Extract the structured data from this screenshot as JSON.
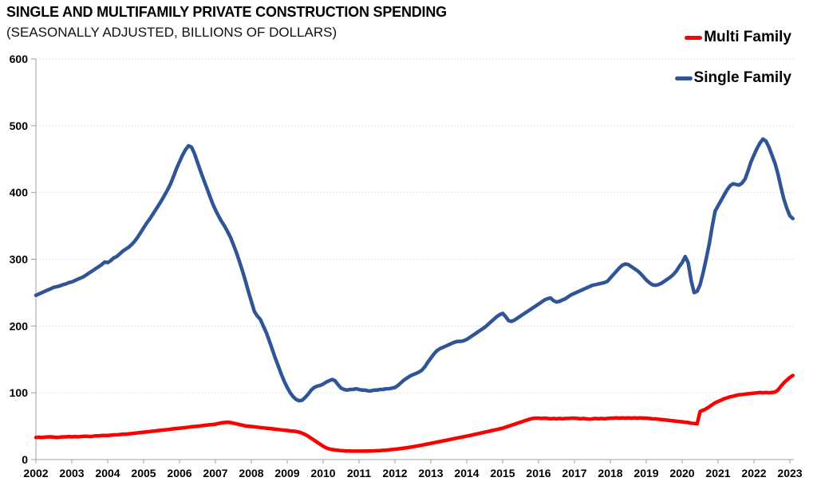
{
  "title": "SINGLE AND MULTIFAMILY PRIVATE CONSTRUCTION SPENDING",
  "subtitle": "(SEASONALLY ADJUSTED, BILLIONS OF DOLLARS)",
  "legend": [
    {
      "label": "Multi Family",
      "color": "#fa0000"
    },
    {
      "label": "Single Family",
      "color": "#2f5597"
    }
  ],
  "colors": {
    "multi_family_line": "#fa0000",
    "single_family_line": "#2f5597",
    "gridline": "#c8c8c8",
    "axis": "#a0a0a0",
    "text": "#000000"
  },
  "chart_data": {
    "type": "line",
    "title": "SINGLE AND MULTIFAMILY PRIVATE CONSTRUCTION SPENDING",
    "subtitle": "(SEASONALLY ADJUSTED, BILLIONS OF DOLLARS)",
    "xlabel": "",
    "ylabel": "",
    "ylim": [
      0,
      600
    ],
    "y_ticks": [
      0,
      100,
      200,
      300,
      400,
      500,
      600
    ],
    "x_tick_labels": [
      "2002",
      "2003",
      "2004",
      "2005",
      "2006",
      "2007",
      "2008",
      "2009",
      "2010",
      "2011",
      "2012",
      "2013",
      "2014",
      "2015",
      "2016",
      "2017",
      "2018",
      "2019",
      "2020",
      "2021",
      "2022",
      "2023"
    ],
    "x_start_year": 2002,
    "points_per_year": 12,
    "grid": "horizontal-dotted",
    "legend_position": "top-right",
    "series": [
      {
        "name": "Multi Family",
        "color": "#fa0000",
        "values": [
          33,
          33.5,
          33,
          33.5,
          34,
          34,
          33.5,
          33,
          33.5,
          34,
          34,
          34.5,
          34,
          34.5,
          34,
          34.5,
          35,
          35,
          34.5,
          35,
          35.5,
          35.5,
          36,
          36,
          36,
          36.5,
          37,
          37,
          37.5,
          38,
          38,
          38.5,
          39,
          39.5,
          40,
          40.5,
          41,
          41.5,
          42,
          42.5,
          43,
          43.5,
          44,
          44.5,
          45,
          45.5,
          46,
          46.5,
          47,
          47.5,
          48,
          48.5,
          49,
          49.5,
          50,
          50.5,
          51,
          51.5,
          52,
          52.5,
          53,
          54,
          55,
          55.5,
          56,
          55.5,
          54.5,
          53.5,
          52.5,
          51.5,
          50.5,
          50,
          49.5,
          49,
          48.5,
          48,
          47.5,
          47,
          46.5,
          46,
          45.5,
          45,
          44.5,
          44,
          43.5,
          43,
          42.5,
          42,
          41,
          39.5,
          37.5,
          35,
          32,
          29,
          26,
          23,
          20,
          17.5,
          16,
          15,
          14.3,
          13.8,
          13.4,
          13.1,
          12.9,
          12.8,
          12.7,
          12.7,
          12.7,
          12.6,
          12.7,
          12.8,
          12.9,
          13,
          13.2,
          13.5,
          13.8,
          14.1,
          14.5,
          15,
          15.5,
          16,
          16.6,
          17.2,
          17.8,
          18.5,
          19.2,
          20,
          20.8,
          21.6,
          22.5,
          23.4,
          24.3,
          25.2,
          26.1,
          27,
          27.9,
          28.8,
          29.7,
          30.6,
          31.5,
          32.4,
          33.3,
          34.2,
          35.1,
          36,
          37,
          38,
          39,
          40,
          41,
          42,
          43,
          44,
          45,
          46,
          47,
          48.5,
          50,
          51.5,
          53,
          54.5,
          56,
          57.5,
          59,
          60.5,
          61.5,
          62,
          62,
          61.5,
          62,
          61.5,
          61,
          61.5,
          61,
          61.5,
          61,
          61.5,
          61.5,
          62,
          62,
          61.5,
          61,
          61.5,
          61,
          60.5,
          61,
          61.5,
          61,
          61.5,
          61,
          61.5,
          62,
          62,
          62.5,
          62,
          62.5,
          62,
          62.5,
          62,
          62.5,
          62,
          62.5,
          62,
          62,
          61.5,
          61,
          61,
          60.5,
          60,
          59.5,
          59,
          58.5,
          58,
          57.5,
          57,
          56.5,
          56,
          55.5,
          54.5,
          54,
          53.5,
          72,
          74,
          76,
          79,
          82,
          85,
          87,
          89,
          91,
          92.5,
          94,
          95,
          96,
          97,
          97.5,
          98,
          98.5,
          99,
          99.5,
          100,
          100.5,
          100,
          100.5,
          100,
          100.5,
          101,
          104,
          110,
          115,
          119,
          123,
          126
        ]
      },
      {
        "name": "Single Family",
        "color": "#2f5597",
        "values": [
          246,
          248,
          250,
          252,
          254,
          256,
          258,
          259,
          260,
          262,
          263,
          265,
          266,
          268,
          270,
          272,
          274,
          277,
          280,
          283,
          286,
          289,
          292,
          296,
          295,
          298,
          302,
          304,
          308,
          312,
          315,
          318,
          322,
          327,
          333,
          340,
          347,
          354,
          360,
          367,
          374,
          381,
          388,
          396,
          404,
          413,
          424,
          436,
          446,
          456,
          464,
          470,
          468,
          458,
          445,
          432,
          420,
          408,
          396,
          384,
          374,
          365,
          357,
          350,
          342,
          333,
          322,
          310,
          297,
          283,
          268,
          252,
          237,
          222,
          215,
          210,
          200,
          190,
          178,
          165,
          152,
          140,
          128,
          117,
          108,
          100,
          94,
          90,
          88,
          89,
          93,
          98,
          104,
          108,
          110,
          111,
          113,
          116,
          118,
          120,
          118,
          112,
          107,
          105,
          104,
          105,
          105,
          106,
          105,
          104,
          104,
          103,
          103,
          104,
          104,
          105,
          105,
          106,
          106,
          107,
          108,
          111,
          115,
          119,
          122,
          125,
          127,
          129,
          131,
          134,
          139,
          146,
          152,
          158,
          163,
          166,
          168,
          170,
          172,
          174,
          176,
          177,
          177,
          178,
          180,
          183,
          186,
          189,
          192,
          195,
          198,
          202,
          206,
          210,
          214,
          217,
          219,
          214,
          208,
          207,
          209,
          212,
          215,
          218,
          221,
          224,
          227,
          230,
          233,
          236,
          239,
          241,
          242,
          238,
          236,
          237,
          239,
          241,
          244,
          247,
          249,
          251,
          253,
          255,
          257,
          259,
          261,
          262,
          263,
          264,
          265,
          267,
          272,
          277,
          282,
          287,
          291,
          293,
          292,
          289,
          286,
          283,
          279,
          274,
          269,
          265,
          262,
          261,
          262,
          264,
          267,
          270,
          273,
          277,
          282,
          289,
          295,
          304,
          295,
          268,
          250,
          252,
          262,
          280,
          300,
          322,
          348,
          372,
          380,
          388,
          396,
          404,
          410,
          413,
          412,
          411,
          414,
          420,
          432,
          446,
          456,
          466,
          474,
          480,
          477,
          468,
          456,
          444,
          428,
          408,
          390,
          376,
          365,
          361
        ]
      }
    ]
  }
}
